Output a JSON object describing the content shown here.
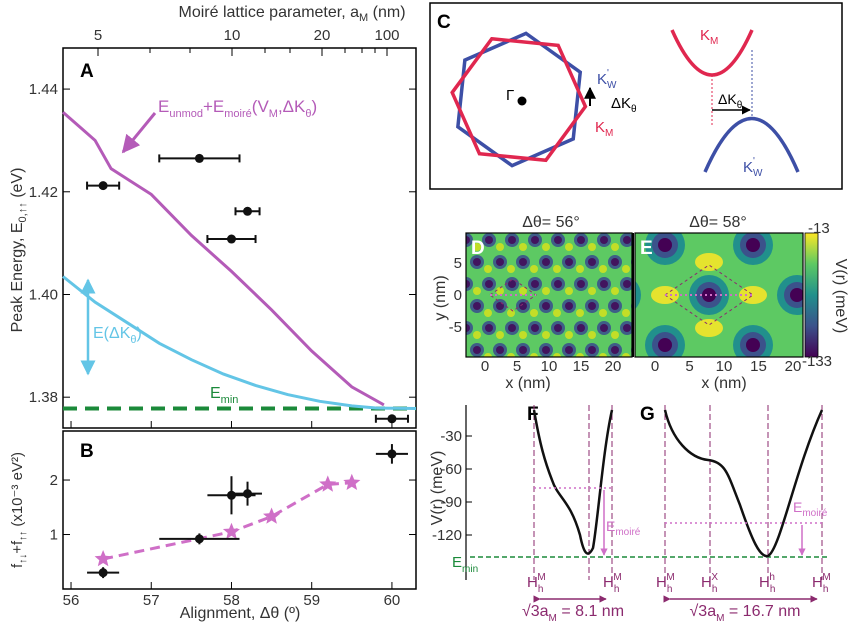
{
  "colors": {
    "purple": "#b45bb8",
    "cyan": "#63c5e6",
    "green": "#1b8a3a",
    "red": "#e0274f",
    "blue": "#3d4fa6",
    "dark": "#8b2a6e",
    "pink": "#cf6fc7"
  },
  "panels": [
    "A",
    "B",
    "C",
    "D",
    "E",
    "F",
    "G"
  ],
  "top_axis": {
    "label": "Moiré lattice parameter, a",
    "label_sub": "M",
    "label_unit": " (nm)",
    "ticks": [
      "5",
      "10",
      "20",
      "100"
    ]
  },
  "chart_data": [
    {
      "id": "A",
      "type": "line",
      "ylabel": "Peak Energy, E",
      "ylabel_sub": "0,↑↑",
      "ylabel_unit": " (eV)",
      "xlim": [
        55.9,
        60.3
      ],
      "ylim": [
        1.374,
        1.448
      ],
      "yticks": [
        1.38,
        1.4,
        1.42,
        1.44
      ],
      "series": [
        {
          "name": "E_unmod + E_moiré(V_M, ΔK_θ)",
          "color": "#b45bb8",
          "x": [
            55.9,
            56.3,
            56.5,
            57.0,
            57.5,
            58.0,
            58.5,
            59.0,
            59.5,
            59.9
          ],
          "y": [
            1.4355,
            1.43,
            1.4245,
            1.4195,
            1.4115,
            1.4045,
            1.397,
            1.389,
            1.382,
            1.3785
          ]
        },
        {
          "name": "E(ΔK_θ)",
          "color": "#63c5e6",
          "x": [
            55.9,
            56.3,
            56.7,
            57.1,
            57.5,
            57.9,
            58.3,
            58.7,
            59.1,
            59.5,
            59.8,
            60.3
          ],
          "y": [
            1.4035,
            1.3985,
            1.3945,
            1.3905,
            1.3873,
            1.3845,
            1.3823,
            1.3805,
            1.3792,
            1.3783,
            1.3779,
            1.3778
          ]
        },
        {
          "name": "E_min",
          "color": "#1b8a3a",
          "x": [
            55.9,
            60.3
          ],
          "y": [
            1.3778,
            1.3778
          ]
        }
      ],
      "points": [
        {
          "x": 56.4,
          "y": 1.4212,
          "xerr": 0.2,
          "yerr": 0
        },
        {
          "x": 57.6,
          "y": 1.4265,
          "xerr": 0.5,
          "yerr": 0
        },
        {
          "x": 58.2,
          "y": 1.4162,
          "xerr": 0.15,
          "yerr": 0.0006
        },
        {
          "x": 58.0,
          "y": 1.4108,
          "xerr": 0.3,
          "yerr": 0
        },
        {
          "x": 60.0,
          "y": 1.3758,
          "xerr": 0.2,
          "yerr": 0.0006
        }
      ],
      "annotations": {
        "formula": "E",
        "formula_sub1": "unmod",
        "formula_mid": "+E",
        "formula_sub2": "moiré",
        "formula_end": "(V",
        "formula_sub3": "M",
        "formula_tail": ",ΔK",
        "formula_sub4": "θ",
        "formula_close": ")",
        "edk": "E(ΔK",
        "edk_sub": "θ",
        "edk_close": ")",
        "emin": "E",
        "emin_sub": "min"
      }
    },
    {
      "id": "B",
      "type": "scatter",
      "ylabel": "f",
      "ylabel_sub1": "↑↓",
      "ylabel_mid": "+f",
      "ylabel_sub2": "↑↑",
      "ylabel_unit": " (x10⁻³ eV²)",
      "xlabel": "Alignment, Δθ (º)",
      "xlim": [
        55.9,
        60.3
      ],
      "ylim": [
        0,
        2.9
      ],
      "xticks": [
        56,
        57,
        58,
        59,
        60
      ],
      "yticks": [
        1,
        2
      ],
      "stars": {
        "x": [
          56.4,
          58.0,
          58.5,
          59.2,
          59.5
        ],
        "y": [
          0.55,
          1.05,
          1.33,
          1.92,
          1.95
        ]
      },
      "points": [
        {
          "x": 56.4,
          "y": 0.3,
          "xerr": 0.2,
          "yerr": 0.1
        },
        {
          "x": 57.6,
          "y": 0.92,
          "xerr": 0.5,
          "yerr": 0.1
        },
        {
          "x": 58.0,
          "y": 1.72,
          "xerr": 0.3,
          "yerr": 0.35
        },
        {
          "x": 58.2,
          "y": 1.75,
          "xerr": 0.18,
          "yerr": 0.22
        },
        {
          "x": 60.0,
          "y": 2.48,
          "xerr": 0.2,
          "yerr": 0.18
        }
      ]
    },
    {
      "id": "D",
      "type": "heatmap",
      "title": "Δθ= 56°",
      "xlabel": "x (nm)",
      "ylabel": "y (nm)",
      "xticks": [
        0,
        5,
        10,
        15,
        20
      ],
      "yticks": [
        5,
        0,
        -5
      ]
    },
    {
      "id": "E",
      "type": "heatmap",
      "title": "Δθ= 58°",
      "xlabel": "x (nm)",
      "xticks": [
        0,
        5,
        10,
        15,
        20
      ],
      "colorbar": {
        "label": "V(r) (meV)",
        "max": "-13",
        "min": "-133"
      }
    },
    {
      "id": "F",
      "type": "line",
      "ylabel": "V(r) (meV)",
      "yticks": [
        "-30",
        "-60",
        "-90",
        "-120"
      ],
      "emin": "E",
      "emin_sub": "min",
      "emoire": "E",
      "emoire_sub": "moiré",
      "xlabels": [
        "H",
        "H"
      ],
      "xlabel_sub": [
        "M",
        "M"
      ],
      "xlabel_sub2": [
        "h",
        "h"
      ],
      "width_label": "√3a",
      "width_sub": "M",
      "width_val": " = 8.1 nm"
    },
    {
      "id": "G",
      "type": "line",
      "emoire": "E",
      "emoire_sub": "moiré",
      "xlabels": [
        "H",
        "H",
        "H",
        "H"
      ],
      "xlabel_sub": [
        "M",
        "X",
        "h",
        "M"
      ],
      "xlabel_sub2": [
        "h",
        "h",
        "h",
        "h"
      ],
      "width_label": "√3a",
      "width_sub": "M",
      "width_val": " = 16.7 nm"
    }
  ],
  "panelC": {
    "gamma": "Γ",
    "kw": "K",
    "kw_sub": "W",
    "dk": "ΔK",
    "dk_sub": "θ",
    "km": "K",
    "km_sub": "M"
  }
}
